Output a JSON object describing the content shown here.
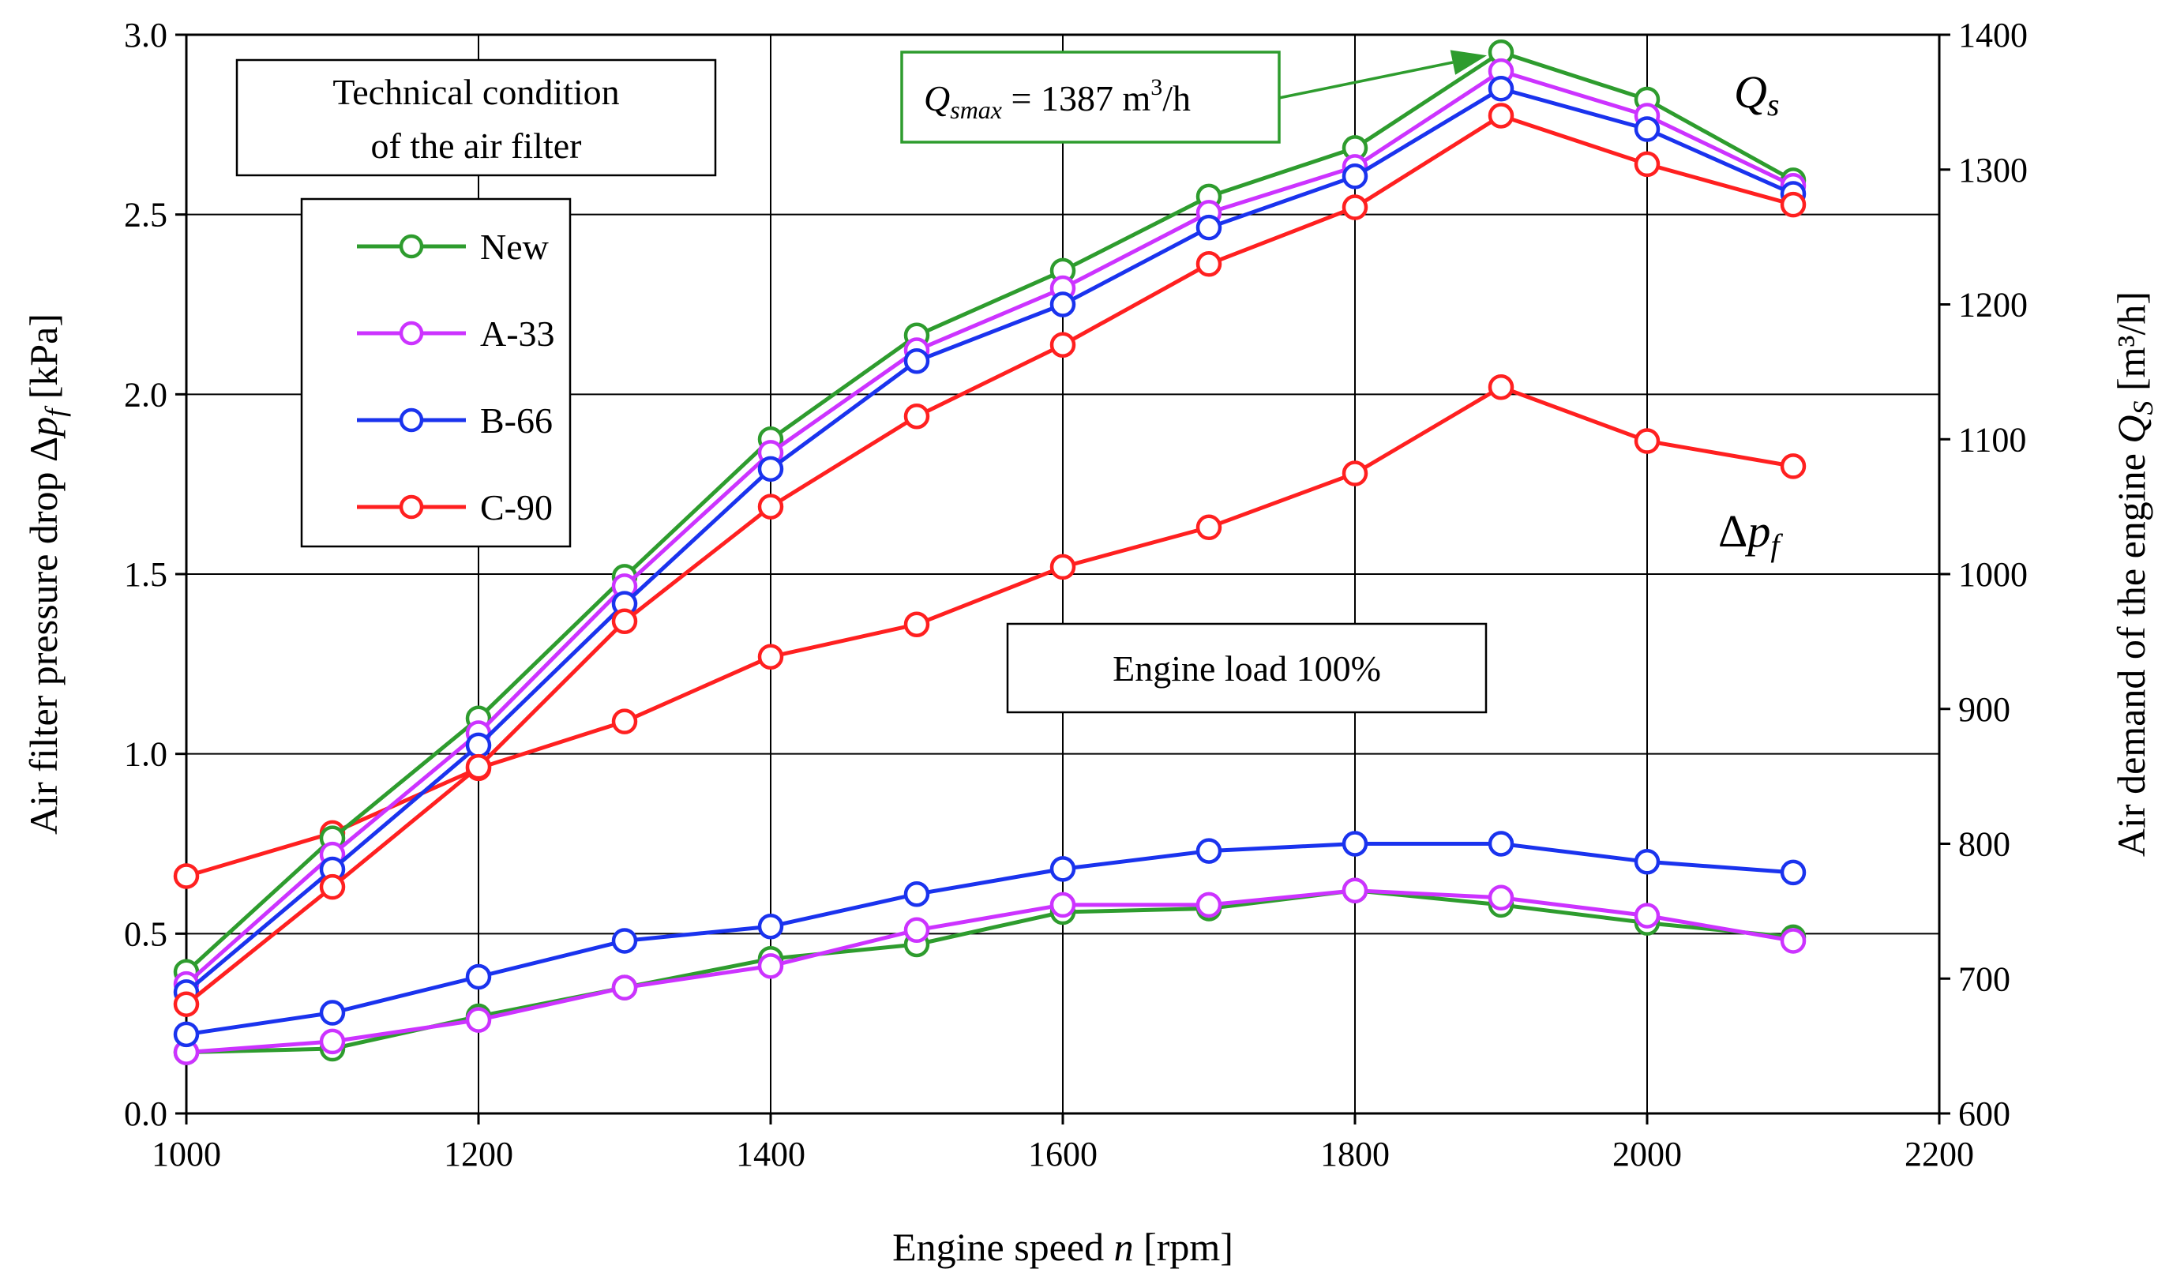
{
  "chart_data": {
    "type": "line",
    "xlabel_prefix": "Engine speed ",
    "xlabel_var": "n",
    "xlabel_suffix": " [rpm]",
    "ylabel_left_prefix": "Air filter pressure drop Δ",
    "ylabel_left_var": "p",
    "ylabel_left_sub": "f",
    "ylabel_left_suffix": " [kPa]",
    "ylabel_right_prefix": "Air demand of the engine ",
    "ylabel_right_var": "Q",
    "ylabel_right_sub": "S",
    "ylabel_right_suffix": " [m³/h]",
    "xlim": [
      1000,
      2200
    ],
    "x_ticks": [
      "1000",
      "1200",
      "1400",
      "1600",
      "1800",
      "2000",
      "2200"
    ],
    "ylim_left": [
      0,
      3
    ],
    "y_left_ticks": [
      "0.0",
      "0.5",
      "1.0",
      "1.5",
      "2.0",
      "2.5",
      "3.0"
    ],
    "ylim_right": [
      600,
      1400
    ],
    "y_right_ticks": [
      "600",
      "700",
      "800",
      "900",
      "1000",
      "1100",
      "1200",
      "1300",
      "1400"
    ],
    "grid": true,
    "x": [
      1000,
      1100,
      1200,
      1300,
      1400,
      1500,
      1600,
      1700,
      1800,
      1900,
      2000,
      2100
    ],
    "series_Qs": [
      {
        "name": "New",
        "color": "#2e9c2e",
        "axis": "right",
        "values": [
          705,
          804,
          893,
          998,
          1100,
          1177,
          1225,
          1280,
          1316,
          1387,
          1352,
          1292
        ]
      },
      {
        "name": "A-33",
        "color": "#cc33ff",
        "axis": "right",
        "values": [
          696,
          792,
          882,
          991,
          1090,
          1166,
          1212,
          1268,
          1302,
          1373,
          1340,
          1288
        ]
      },
      {
        "name": "B-66",
        "color": "#1a33ee",
        "axis": "right",
        "values": [
          690,
          781,
          873,
          978,
          1078,
          1158,
          1200,
          1257,
          1295,
          1360,
          1330,
          1282
        ]
      },
      {
        "name": "C-90",
        "color": "#ff2020",
        "axis": "right",
        "values": [
          681,
          768,
          857,
          965,
          1050,
          1117,
          1170,
          1230,
          1272,
          1340,
          1304,
          1274
        ]
      }
    ],
    "series_dp": [
      {
        "name": "New",
        "color": "#2e9c2e",
        "axis": "left",
        "values": [
          0.17,
          0.18,
          0.27,
          0.35,
          0.43,
          0.47,
          0.56,
          0.57,
          0.62,
          0.58,
          0.53,
          0.49
        ]
      },
      {
        "name": "A-33",
        "color": "#cc33ff",
        "axis": "left",
        "values": [
          0.17,
          0.2,
          0.26,
          0.35,
          0.41,
          0.51,
          0.58,
          0.58,
          0.62,
          0.6,
          0.55,
          0.48
        ]
      },
      {
        "name": "B-66",
        "color": "#1a33ee",
        "axis": "left",
        "values": [
          0.22,
          0.28,
          0.38,
          0.48,
          0.52,
          0.61,
          0.68,
          0.73,
          0.75,
          0.75,
          0.7,
          0.67
        ]
      },
      {
        "name": "C-90",
        "color": "#ff2020",
        "axis": "left",
        "values": [
          0.66,
          0.78,
          0.96,
          1.09,
          1.27,
          1.36,
          1.52,
          1.63,
          1.78,
          2.02,
          1.87,
          1.8
        ]
      }
    ],
    "legend": {
      "title_line1": "Technical condition",
      "title_line2": "of the air filter",
      "entries": [
        "New",
        "A-33",
        "B-66",
        "C-90"
      ],
      "placement": "top-left"
    },
    "annotations": {
      "qsmax_var": "Q",
      "qsmax_sub": "smax",
      "qsmax_text": " = 1387 m",
      "qsmax_sup": "3",
      "qsmax_unit": "/h",
      "qsmax_value": 1387,
      "qsmax_x": 1900,
      "qsmax_color": "#2e9c2e",
      "engine_load": "Engine load 100%",
      "qs_label_var": "Q",
      "qs_label_sub": "s",
      "dp_label_delta": "Δ",
      "dp_label_var": "p",
      "dp_label_sub": "f"
    }
  }
}
